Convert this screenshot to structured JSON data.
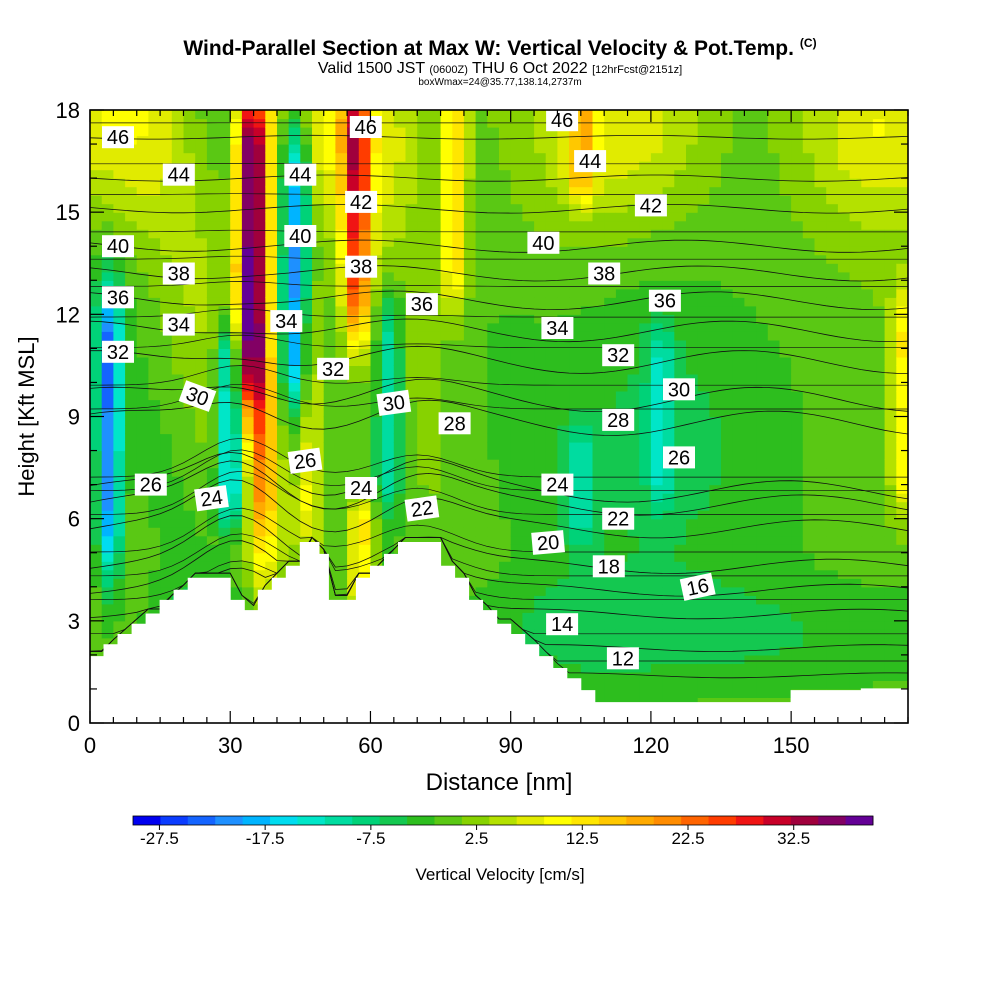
{
  "title": {
    "main": "Wind-Parallel Section at Max W: Vertical Velocity & Pot.Temp.",
    "copyright": "(C)",
    "valid_a": "Valid 1500 JST",
    "valid_utc": "(0600Z)",
    "valid_b": "THU 6 Oct 2022",
    "fcst": "[12hrFcst@2151z]",
    "sub": "boxWmax=24@35.77,138.14,2737m"
  },
  "chart_data": {
    "type": "heatmap",
    "xlabel": "Distance [nm]",
    "ylabel": "Height [Kft MSL]",
    "xlim": [
      0,
      175
    ],
    "ylim": [
      0,
      18
    ],
    "x_ticks": [
      0,
      30,
      60,
      90,
      120,
      150
    ],
    "y_ticks": [
      0,
      3,
      6,
      9,
      12,
      15,
      18
    ],
    "colorbar": {
      "label": "Vertical Velocity [cm/s]",
      "tick_labels": [
        "-27.5",
        "-17.5",
        "-7.5",
        "2.5",
        "12.5",
        "22.5",
        "32.5"
      ],
      "tick_values": [
        -27.5,
        -17.5,
        -7.5,
        2.5,
        12.5,
        22.5,
        32.5
      ],
      "range": [
        -30,
        40
      ],
      "colors": [
        "#0000f0",
        "#0a3cff",
        "#1464ff",
        "#1e90ff",
        "#00b4ff",
        "#00dcf0",
        "#00e6c8",
        "#00dca0",
        "#00d278",
        "#14c850",
        "#2dbe1e",
        "#5ac814",
        "#87d200",
        "#b4e100",
        "#e1eb00",
        "#ffff00",
        "#ffe600",
        "#ffc800",
        "#ffaa00",
        "#ff8c00",
        "#ff6400",
        "#ff3c00",
        "#f01414",
        "#c80028",
        "#a0003c",
        "#820064",
        "#640096"
      ]
    },
    "vertical_velocity_features": [
      {
        "x": 4,
        "ylo": 5,
        "yhi": 12,
        "w": -22
      },
      {
        "x": 30,
        "ylo": 6.5,
        "yhi": 11,
        "w": -20
      },
      {
        "x": 34,
        "ylo": 10,
        "yhi": 18,
        "w": 33
      },
      {
        "x": 37,
        "ylo": 5.5,
        "yhi": 18,
        "w": 18
      },
      {
        "x": 44,
        "ylo": 10,
        "yhi": 17,
        "w": -20
      },
      {
        "x": 47,
        "ylo": 6,
        "yhi": 12,
        "w": 9
      },
      {
        "x": 57,
        "ylo": 12,
        "yhi": 18,
        "w": 24
      },
      {
        "x": 58,
        "ylo": 4,
        "yhi": 6,
        "w": 14
      },
      {
        "x": 64,
        "ylo": 7,
        "yhi": 12,
        "w": -12
      },
      {
        "x": 78,
        "ylo": 13,
        "yhi": 18,
        "w": 14
      },
      {
        "x": 122,
        "ylo": 7,
        "yhi": 11,
        "w": -9
      },
      {
        "x": 105,
        "ylo": 6,
        "yhi": 8,
        "w": -8
      },
      {
        "x": 105,
        "ylo": 16,
        "yhi": 18,
        "w": 12
      },
      {
        "x": 174,
        "ylo": 7,
        "yhi": 12,
        "w": 11
      }
    ],
    "theta_contours": [
      {
        "value": 12,
        "anchor": [
          118,
          1.4
        ]
      },
      {
        "value": 14,
        "anchor": [
          100,
          2.2
        ]
      },
      {
        "value": 16,
        "anchor": [
          130,
          3.2
        ]
      },
      {
        "value": 18,
        "anchor": [
          115,
          3.9
        ]
      },
      {
        "value": 20,
        "anchor": [
          98,
          4.6
        ]
      },
      {
        "value": 22,
        "anchor": [
          72,
          5.7
        ]
      },
      {
        "value": 24,
        "anchor": [
          55,
          6.4
        ]
      },
      {
        "value": 26,
        "anchor": [
          15,
          6.8
        ]
      },
      {
        "value": 28,
        "anchor": [
          85,
          8.8
        ]
      },
      {
        "value": 30,
        "anchor": [
          22,
          9.5
        ]
      },
      {
        "value": 32,
        "anchor": [
          5,
          10.6
        ]
      },
      {
        "value": 34,
        "anchor": [
          20,
          11.5
        ]
      },
      {
        "value": 36,
        "anchor": [
          5,
          12.4
        ]
      },
      {
        "value": 38,
        "anchor": [
          20,
          13.2
        ]
      },
      {
        "value": 40,
        "anchor": [
          5,
          14.0
        ]
      },
      {
        "value": 42,
        "anchor": [
          58,
          15.1
        ]
      },
      {
        "value": 44,
        "anchor": [
          20,
          16.0
        ]
      },
      {
        "value": 46,
        "anchor": [
          5,
          17.2
        ]
      }
    ],
    "contour_labels": [
      {
        "text": "46",
        "x": 6,
        "y": 17.2,
        "rot": 0
      },
      {
        "text": "44",
        "x": 19,
        "y": 16.1,
        "rot": 0
      },
      {
        "text": "40",
        "x": 6,
        "y": 14.0,
        "rot": 0
      },
      {
        "text": "38",
        "x": 19,
        "y": 13.2,
        "rot": 0
      },
      {
        "text": "36",
        "x": 6,
        "y": 12.5,
        "rot": 0
      },
      {
        "text": "34",
        "x": 19,
        "y": 11.7,
        "rot": 0
      },
      {
        "text": "32",
        "x": 6,
        "y": 10.9,
        "rot": 0
      },
      {
        "text": "30",
        "x": 23,
        "y": 9.6,
        "rot": 20
      },
      {
        "text": "26",
        "x": 13,
        "y": 7.0,
        "rot": 0
      },
      {
        "text": "24",
        "x": 26,
        "y": 6.6,
        "rot": -8
      },
      {
        "text": "44",
        "x": 45,
        "y": 16.1,
        "rot": 0
      },
      {
        "text": "40",
        "x": 45,
        "y": 14.3,
        "rot": 0
      },
      {
        "text": "34",
        "x": 42,
        "y": 11.8,
        "rot": 0
      },
      {
        "text": "32",
        "x": 52,
        "y": 10.4,
        "rot": 0
      },
      {
        "text": "26",
        "x": 46,
        "y": 7.7,
        "rot": -8
      },
      {
        "text": "46",
        "x": 59,
        "y": 17.5,
        "rot": 0
      },
      {
        "text": "42",
        "x": 58,
        "y": 15.3,
        "rot": 0
      },
      {
        "text": "38",
        "x": 58,
        "y": 13.4,
        "rot": 0
      },
      {
        "text": "36",
        "x": 71,
        "y": 12.3,
        "rot": 0
      },
      {
        "text": "30",
        "x": 65,
        "y": 9.4,
        "rot": -8
      },
      {
        "text": "28",
        "x": 78,
        "y": 8.8,
        "rot": 0
      },
      {
        "text": "24",
        "x": 58,
        "y": 6.9,
        "rot": 0
      },
      {
        "text": "22",
        "x": 71,
        "y": 6.3,
        "rot": -8
      },
      {
        "text": "46",
        "x": 101,
        "y": 17.7,
        "rot": 0
      },
      {
        "text": "44",
        "x": 107,
        "y": 16.5,
        "rot": 0
      },
      {
        "text": "42",
        "x": 120,
        "y": 15.2,
        "rot": 0
      },
      {
        "text": "40",
        "x": 97,
        "y": 14.1,
        "rot": 0
      },
      {
        "text": "38",
        "x": 110,
        "y": 13.2,
        "rot": 0
      },
      {
        "text": "36",
        "x": 123,
        "y": 12.4,
        "rot": 0
      },
      {
        "text": "34",
        "x": 100,
        "y": 11.6,
        "rot": 0
      },
      {
        "text": "32",
        "x": 113,
        "y": 10.8,
        "rot": 0
      },
      {
        "text": "30",
        "x": 126,
        "y": 9.8,
        "rot": 0
      },
      {
        "text": "28",
        "x": 113,
        "y": 8.9,
        "rot": 0
      },
      {
        "text": "26",
        "x": 126,
        "y": 7.8,
        "rot": 0
      },
      {
        "text": "24",
        "x": 100,
        "y": 7.0,
        "rot": 0
      },
      {
        "text": "22",
        "x": 113,
        "y": 6.0,
        "rot": 0
      },
      {
        "text": "20",
        "x": 98,
        "y": 5.3,
        "rot": -5
      },
      {
        "text": "18",
        "x": 111,
        "y": 4.6,
        "rot": 0
      },
      {
        "text": "16",
        "x": 130,
        "y": 4.0,
        "rot": -12
      },
      {
        "text": "14",
        "x": 101,
        "y": 2.9,
        "rot": 0
      },
      {
        "text": "12",
        "x": 114,
        "y": 1.9,
        "rot": 0
      }
    ],
    "terrain": [
      [
        0,
        1.95
      ],
      [
        3,
        1.95
      ],
      [
        3,
        2.3
      ],
      [
        6,
        2.3
      ],
      [
        6,
        2.6
      ],
      [
        9,
        2.6
      ],
      [
        9,
        2.9
      ],
      [
        12,
        2.9
      ],
      [
        12,
        3.2
      ],
      [
        15,
        3.2
      ],
      [
        15,
        3.6
      ],
      [
        18,
        3.6
      ],
      [
        18,
        3.9
      ],
      [
        21,
        3.9
      ],
      [
        21,
        4.25
      ],
      [
        30,
        4.25
      ],
      [
        30,
        3.6
      ],
      [
        33,
        3.6
      ],
      [
        33,
        3.3
      ],
      [
        36,
        3.3
      ],
      [
        36,
        3.9
      ],
      [
        39,
        3.9
      ],
      [
        39,
        4.25
      ],
      [
        42,
        4.25
      ],
      [
        42,
        4.6
      ],
      [
        45,
        4.6
      ],
      [
        45,
        5.3
      ],
      [
        49,
        5.3
      ],
      [
        49,
        4.95
      ],
      [
        51,
        4.95
      ],
      [
        51,
        3.6
      ],
      [
        57,
        3.6
      ],
      [
        57,
        4.25
      ],
      [
        60,
        4.25
      ],
      [
        60,
        4.6
      ],
      [
        63,
        4.6
      ],
      [
        63,
        4.95
      ],
      [
        66,
        4.95
      ],
      [
        66,
        5.3
      ],
      [
        75,
        5.3
      ],
      [
        75,
        4.6
      ],
      [
        78,
        4.6
      ],
      [
        78,
        4.25
      ],
      [
        81,
        4.25
      ],
      [
        81,
        3.6
      ],
      [
        84,
        3.6
      ],
      [
        84,
        3.3
      ],
      [
        87,
        3.3
      ],
      [
        87,
        2.9
      ],
      [
        90,
        2.9
      ],
      [
        90,
        2.6
      ],
      [
        93,
        2.6
      ],
      [
        93,
        2.3
      ],
      [
        96,
        2.3
      ],
      [
        96,
        1.95
      ],
      [
        99,
        1.95
      ],
      [
        99,
        1.6
      ],
      [
        102,
        1.6
      ],
      [
        102,
        1.3
      ],
      [
        105,
        1.3
      ],
      [
        105,
        0.95
      ],
      [
        108,
        0.95
      ],
      [
        108,
        0.6
      ],
      [
        150,
        0.6
      ],
      [
        150,
        0.95
      ],
      [
        165,
        0.95
      ],
      [
        165,
        1.0
      ],
      [
        175,
        1.0
      ]
    ]
  }
}
